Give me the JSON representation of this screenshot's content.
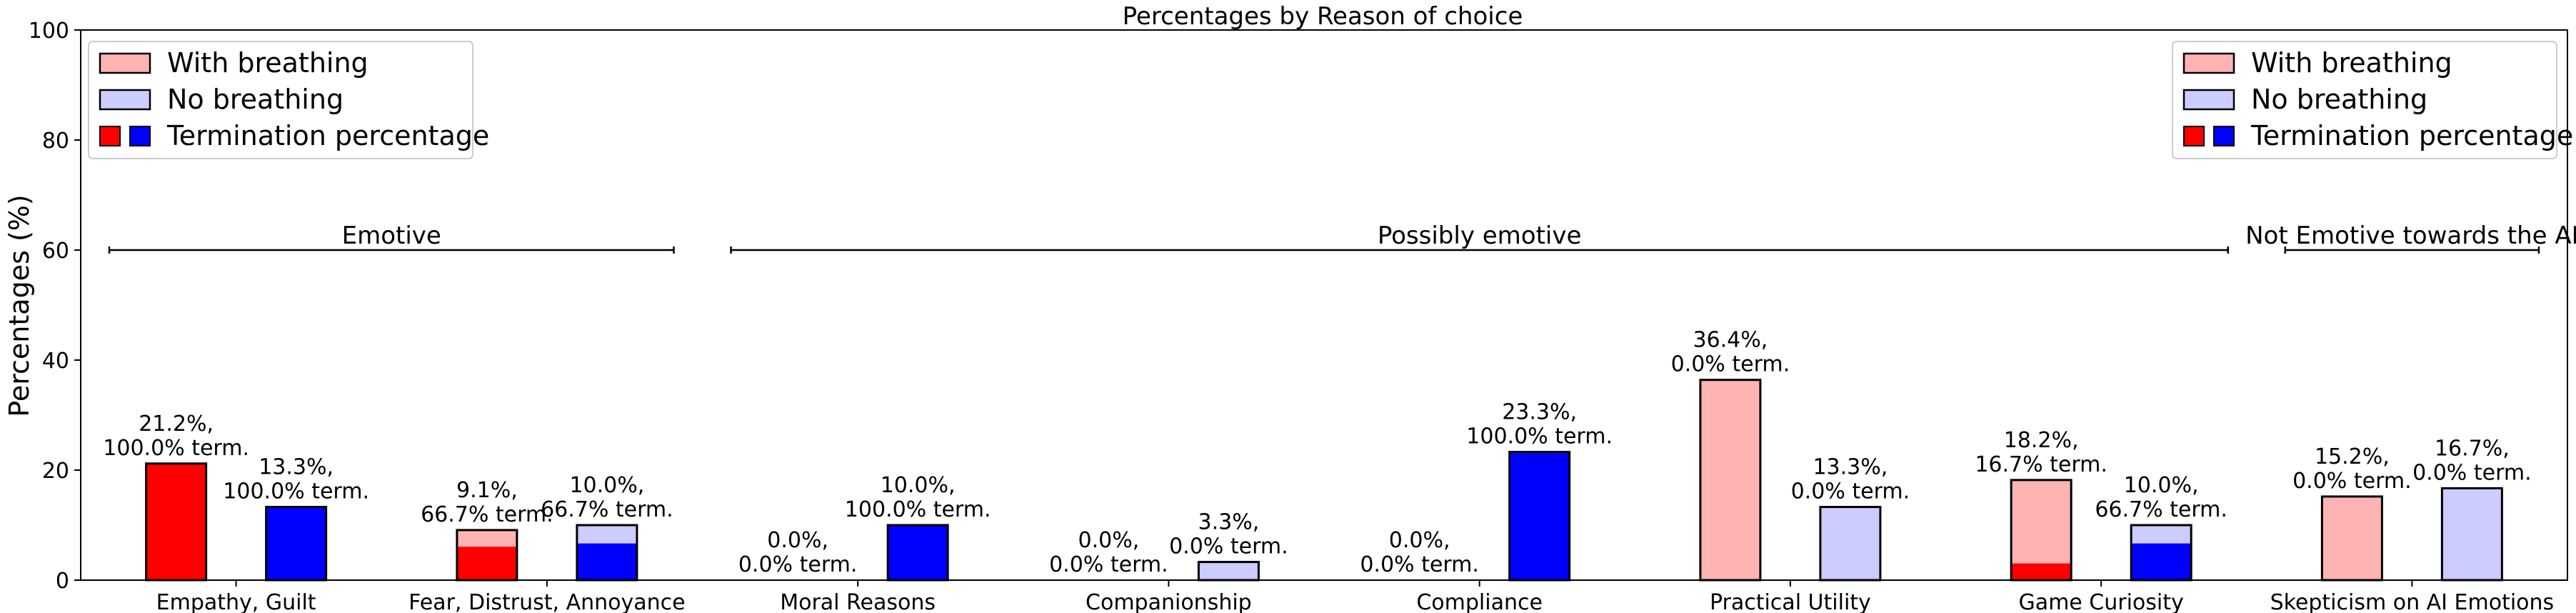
{
  "chart_data": {
    "type": "bar",
    "title": "Percentages by Reason of choice",
    "xlabel": "",
    "ylabel": "Percentages (%)",
    "ylim": [
      0,
      100
    ],
    "yticks": [
      0,
      20,
      40,
      60,
      80,
      100
    ],
    "grid": false,
    "categories": [
      "Empathy, Guilt",
      "Fear, Distrust, Annoyance",
      "Moral Reasons",
      "Companionship",
      "Compliance",
      "Practical Utility",
      "Game Curiosity",
      "Skepticism on AI Emotions"
    ],
    "series": [
      {
        "name": "With breathing",
        "color_light": "#ffb3b3",
        "color_dark": "#ff0000",
        "values": [
          21.2,
          9.1,
          0.0,
          0.0,
          0.0,
          36.4,
          18.2,
          15.2
        ],
        "termination": [
          100.0,
          66.7,
          0.0,
          0.0,
          0.0,
          0.0,
          16.7,
          0.0
        ],
        "labels": [
          [
            "21.2%,",
            "100.0% term."
          ],
          [
            "9.1%,",
            "66.7% term."
          ],
          [
            "0.0%,",
            "0.0% term."
          ],
          [
            "0.0%,",
            "0.0% term."
          ],
          [
            "0.0%,",
            "0.0% term."
          ],
          [
            "36.4%,",
            "0.0% term."
          ],
          [
            "18.2%,",
            "16.7% term."
          ],
          [
            "15.2%,",
            "0.0% term."
          ]
        ]
      },
      {
        "name": "No breathing",
        "color_light": "#ccccff",
        "color_dark": "#0000ff",
        "values": [
          13.3,
          10.0,
          10.0,
          3.3,
          23.3,
          13.3,
          10.0,
          16.7
        ],
        "termination": [
          100.0,
          66.7,
          100.0,
          0.0,
          100.0,
          0.0,
          66.7,
          0.0
        ],
        "labels": [
          [
            "13.3%,",
            "100.0% term."
          ],
          [
            "10.0%,",
            "66.7% term."
          ],
          [
            "10.0%,",
            "100.0% term."
          ],
          [
            "3.3%,",
            "0.0% term."
          ],
          [
            "23.3%,",
            "100.0% term."
          ],
          [
            "13.3%,",
            "0.0% term."
          ],
          [
            "10.0%,",
            "66.7% term."
          ],
          [
            "16.7%,",
            "0.0% term."
          ]
        ]
      }
    ],
    "legend": {
      "placement": [
        "top-left",
        "top-right"
      ],
      "entries": [
        "With breathing",
        "No breathing",
        "Termination percentage"
      ]
    },
    "groups": [
      {
        "label": "Emotive",
        "from": "Empathy, Guilt",
        "to": "Fear, Distrust, Annoyance",
        "y": 60
      },
      {
        "label": "Possibly emotive",
        "from": "Moral Reasons",
        "to": "Game Curiosity",
        "y": 60
      },
      {
        "label": "Not Emotive towards the AI",
        "from": "Skepticism on AI Emotions",
        "to": "Skepticism on AI Emotions",
        "y": 60
      }
    ],
    "edge_color": "#000000"
  }
}
